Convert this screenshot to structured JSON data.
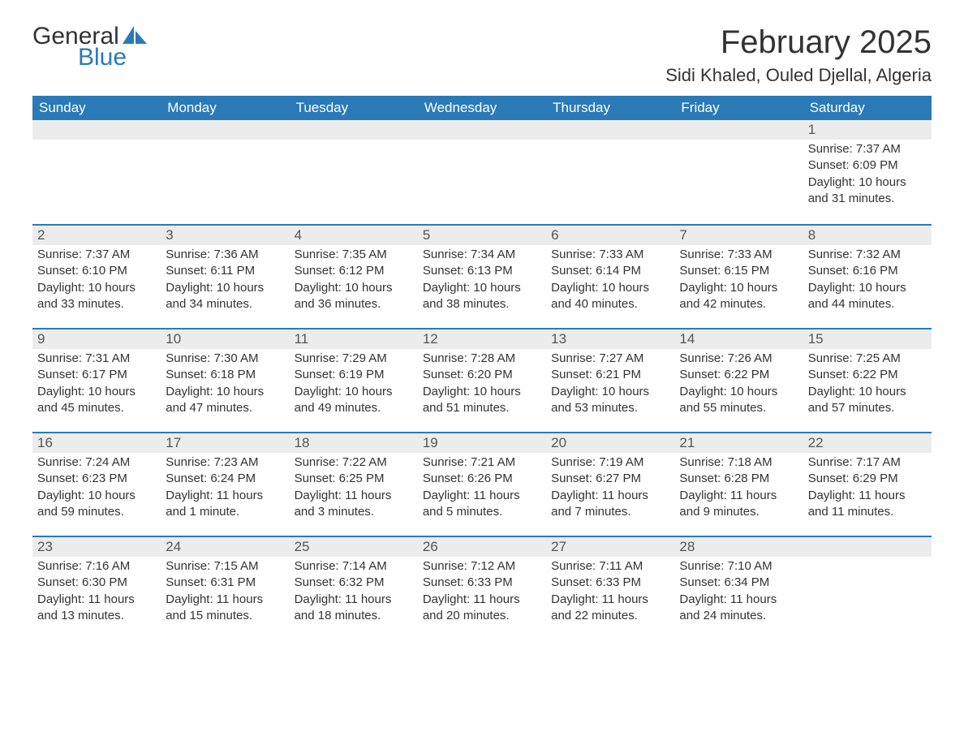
{
  "logo": {
    "word1": "General",
    "word2": "Blue",
    "icon_color": "#2a7ab8"
  },
  "title": "February 2025",
  "location": "Sidi Khaled, Ouled Djellal, Algeria",
  "columns": [
    "Sunday",
    "Monday",
    "Tuesday",
    "Wednesday",
    "Thursday",
    "Friday",
    "Saturday"
  ],
  "colors": {
    "header_bg": "#2a7ab8",
    "header_text": "#ffffff",
    "daynum_bg": "#ececec",
    "row_border": "#2a7ab8",
    "text": "#333333",
    "background": "#ffffff"
  },
  "days": [
    {
      "n": 1,
      "sunrise": "7:37 AM",
      "sunset": "6:09 PM",
      "daylight": "10 hours and 31 minutes."
    },
    {
      "n": 2,
      "sunrise": "7:37 AM",
      "sunset": "6:10 PM",
      "daylight": "10 hours and 33 minutes."
    },
    {
      "n": 3,
      "sunrise": "7:36 AM",
      "sunset": "6:11 PM",
      "daylight": "10 hours and 34 minutes."
    },
    {
      "n": 4,
      "sunrise": "7:35 AM",
      "sunset": "6:12 PM",
      "daylight": "10 hours and 36 minutes."
    },
    {
      "n": 5,
      "sunrise": "7:34 AM",
      "sunset": "6:13 PM",
      "daylight": "10 hours and 38 minutes."
    },
    {
      "n": 6,
      "sunrise": "7:33 AM",
      "sunset": "6:14 PM",
      "daylight": "10 hours and 40 minutes."
    },
    {
      "n": 7,
      "sunrise": "7:33 AM",
      "sunset": "6:15 PM",
      "daylight": "10 hours and 42 minutes."
    },
    {
      "n": 8,
      "sunrise": "7:32 AM",
      "sunset": "6:16 PM",
      "daylight": "10 hours and 44 minutes."
    },
    {
      "n": 9,
      "sunrise": "7:31 AM",
      "sunset": "6:17 PM",
      "daylight": "10 hours and 45 minutes."
    },
    {
      "n": 10,
      "sunrise": "7:30 AM",
      "sunset": "6:18 PM",
      "daylight": "10 hours and 47 minutes."
    },
    {
      "n": 11,
      "sunrise": "7:29 AM",
      "sunset": "6:19 PM",
      "daylight": "10 hours and 49 minutes."
    },
    {
      "n": 12,
      "sunrise": "7:28 AM",
      "sunset": "6:20 PM",
      "daylight": "10 hours and 51 minutes."
    },
    {
      "n": 13,
      "sunrise": "7:27 AM",
      "sunset": "6:21 PM",
      "daylight": "10 hours and 53 minutes."
    },
    {
      "n": 14,
      "sunrise": "7:26 AM",
      "sunset": "6:22 PM",
      "daylight": "10 hours and 55 minutes."
    },
    {
      "n": 15,
      "sunrise": "7:25 AM",
      "sunset": "6:22 PM",
      "daylight": "10 hours and 57 minutes."
    },
    {
      "n": 16,
      "sunrise": "7:24 AM",
      "sunset": "6:23 PM",
      "daylight": "10 hours and 59 minutes."
    },
    {
      "n": 17,
      "sunrise": "7:23 AM",
      "sunset": "6:24 PM",
      "daylight": "11 hours and 1 minute."
    },
    {
      "n": 18,
      "sunrise": "7:22 AM",
      "sunset": "6:25 PM",
      "daylight": "11 hours and 3 minutes."
    },
    {
      "n": 19,
      "sunrise": "7:21 AM",
      "sunset": "6:26 PM",
      "daylight": "11 hours and 5 minutes."
    },
    {
      "n": 20,
      "sunrise": "7:19 AM",
      "sunset": "6:27 PM",
      "daylight": "11 hours and 7 minutes."
    },
    {
      "n": 21,
      "sunrise": "7:18 AM",
      "sunset": "6:28 PM",
      "daylight": "11 hours and 9 minutes."
    },
    {
      "n": 22,
      "sunrise": "7:17 AM",
      "sunset": "6:29 PM",
      "daylight": "11 hours and 11 minutes."
    },
    {
      "n": 23,
      "sunrise": "7:16 AM",
      "sunset": "6:30 PM",
      "daylight": "11 hours and 13 minutes."
    },
    {
      "n": 24,
      "sunrise": "7:15 AM",
      "sunset": "6:31 PM",
      "daylight": "11 hours and 15 minutes."
    },
    {
      "n": 25,
      "sunrise": "7:14 AM",
      "sunset": "6:32 PM",
      "daylight": "11 hours and 18 minutes."
    },
    {
      "n": 26,
      "sunrise": "7:12 AM",
      "sunset": "6:33 PM",
      "daylight": "11 hours and 20 minutes."
    },
    {
      "n": 27,
      "sunrise": "7:11 AM",
      "sunset": "6:33 PM",
      "daylight": "11 hours and 22 minutes."
    },
    {
      "n": 28,
      "sunrise": "7:10 AM",
      "sunset": "6:34 PM",
      "daylight": "11 hours and 24 minutes."
    }
  ],
  "labels": {
    "sunrise": "Sunrise:",
    "sunset": "Sunset:",
    "daylight": "Daylight:"
  },
  "layout": {
    "first_weekday_index": 6,
    "days_in_month": 28,
    "weeks": 5
  }
}
